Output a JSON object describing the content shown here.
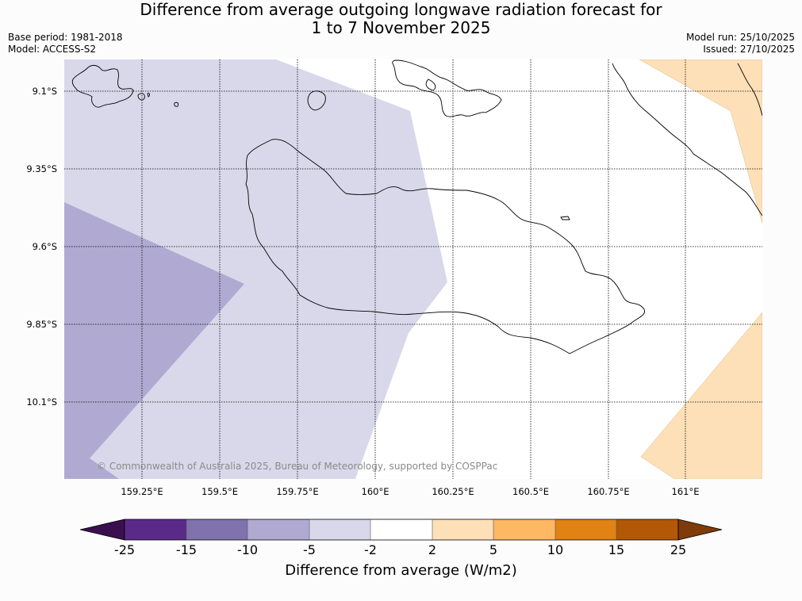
{
  "header": {
    "title_line1": "Difference from average outgoing longwave radiation forecast for",
    "title_line2": "1 to 7 November 2025",
    "base_period": "Base period: 1981-2018",
    "model": "Model: ACCESS-S2",
    "model_run": "Model run: 25/10/2025",
    "issued": "Issued: 27/10/2025"
  },
  "map": {
    "lat_labels": [
      "9.1°S",
      "9.35°S",
      "9.6°S",
      "9.85°S",
      "10.1°S"
    ],
    "lon_labels": [
      "159.25°E",
      "159.5°E",
      "159.75°E",
      "160°E",
      "160.25°E",
      "160.5°E",
      "160.75°E",
      "161°E"
    ],
    "copyright": "© Commonwealth of Australia 2025, Bureau of Meteorology, supported by COSPPac"
  },
  "colorbar": {
    "title": "Difference from average (W/m2)",
    "ticks": [
      "-25",
      "-15",
      "-10",
      "-5",
      "-2",
      "2",
      "5",
      "10",
      "15",
      "25"
    ],
    "colors": {
      "below_-25": "#3b0f4f",
      "-25_-15": "#5a2a88",
      "-15_-10": "#8072ad",
      "-10_-5": "#b0aad2",
      "-5_-2": "#d8d8ea",
      "-2_2": "#ffffff",
      "2_5": "#fde0b8",
      "5_10": "#fdb863",
      "10_15": "#e08214",
      "15_25": "#b35806",
      "above_25": "#7f3b08"
    }
  }
}
